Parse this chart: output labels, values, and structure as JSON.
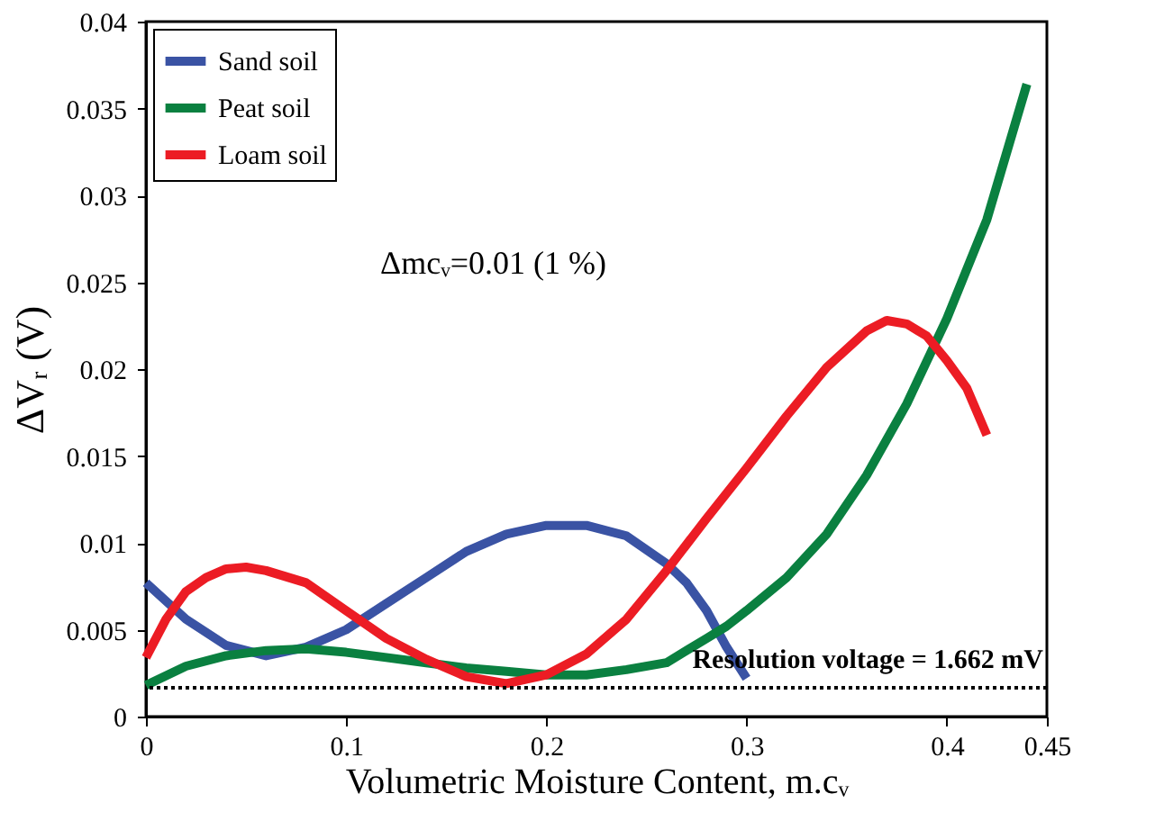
{
  "chart_data": {
    "type": "line",
    "xlabel": "Volumetric Moisture Content, m.cᵥ",
    "ylabel": "ΔVᵣ (V)",
    "xlim": [
      0,
      0.45
    ],
    "xticks": [
      0,
      0.1,
      0.2,
      0.3,
      0.4,
      0.45
    ],
    "ylim": [
      0,
      0.04
    ],
    "yticks": [
      0,
      0.005,
      0.01,
      0.015,
      0.02,
      0.025,
      0.03,
      0.035,
      0.04
    ],
    "grid": false,
    "legend": "top left",
    "marker": "none",
    "line_style": "solid",
    "annotations": [
      "Δmcᵥ=0.01 (1 %)"
    ],
    "ref_lines": [
      {
        "axis": "y",
        "value": 0.001662,
        "label": "Resolution voltage = 1.662 mV",
        "color": "#000000",
        "line_style": "dotted"
      }
    ],
    "series": [
      {
        "name": "Sand soil",
        "color": "#3a53a4",
        "x": [
          0,
          0.02,
          0.04,
          0.06,
          0.08,
          0.1,
          0.12,
          0.14,
          0.16,
          0.18,
          0.2,
          0.22,
          0.24,
          0.26,
          0.27,
          0.28,
          0.29,
          0.3
        ],
        "values": [
          0.0077,
          0.0056,
          0.0041,
          0.0035,
          0.004,
          0.005,
          0.0065,
          0.008,
          0.0095,
          0.0105,
          0.011,
          0.011,
          0.0104,
          0.0088,
          0.0077,
          0.0061,
          0.004,
          0.0022
        ]
      },
      {
        "name": "Peat soil",
        "color": "#0a8040",
        "x": [
          0,
          0.02,
          0.04,
          0.06,
          0.08,
          0.1,
          0.12,
          0.14,
          0.16,
          0.18,
          0.2,
          0.22,
          0.24,
          0.26,
          0.28,
          0.29,
          0.3,
          0.32,
          0.34,
          0.36,
          0.38,
          0.4,
          0.42,
          0.44
        ],
        "values": [
          0.0018,
          0.0029,
          0.0035,
          0.0038,
          0.0039,
          0.0037,
          0.0034,
          0.0031,
          0.0028,
          0.0026,
          0.0024,
          0.0024,
          0.0027,
          0.0031,
          0.0045,
          0.0052,
          0.0061,
          0.008,
          0.0105,
          0.0139,
          0.018,
          0.0229,
          0.0286,
          0.0364
        ]
      },
      {
        "name": "Loam soil",
        "color": "#ec1c24",
        "x": [
          0,
          0.01,
          0.02,
          0.03,
          0.04,
          0.05,
          0.06,
          0.08,
          0.1,
          0.12,
          0.14,
          0.16,
          0.18,
          0.2,
          0.22,
          0.24,
          0.26,
          0.28,
          0.3,
          0.32,
          0.34,
          0.36,
          0.37,
          0.38,
          0.39,
          0.4,
          0.41,
          0.42
        ],
        "values": [
          0.0034,
          0.0056,
          0.0072,
          0.008,
          0.0085,
          0.0086,
          0.0084,
          0.0077,
          0.0061,
          0.0045,
          0.0033,
          0.0023,
          0.0019,
          0.0024,
          0.0036,
          0.0056,
          0.0084,
          0.0114,
          0.0143,
          0.0173,
          0.0201,
          0.0222,
          0.0228,
          0.0226,
          0.0219,
          0.0205,
          0.0189,
          0.0162
        ]
      }
    ]
  }
}
